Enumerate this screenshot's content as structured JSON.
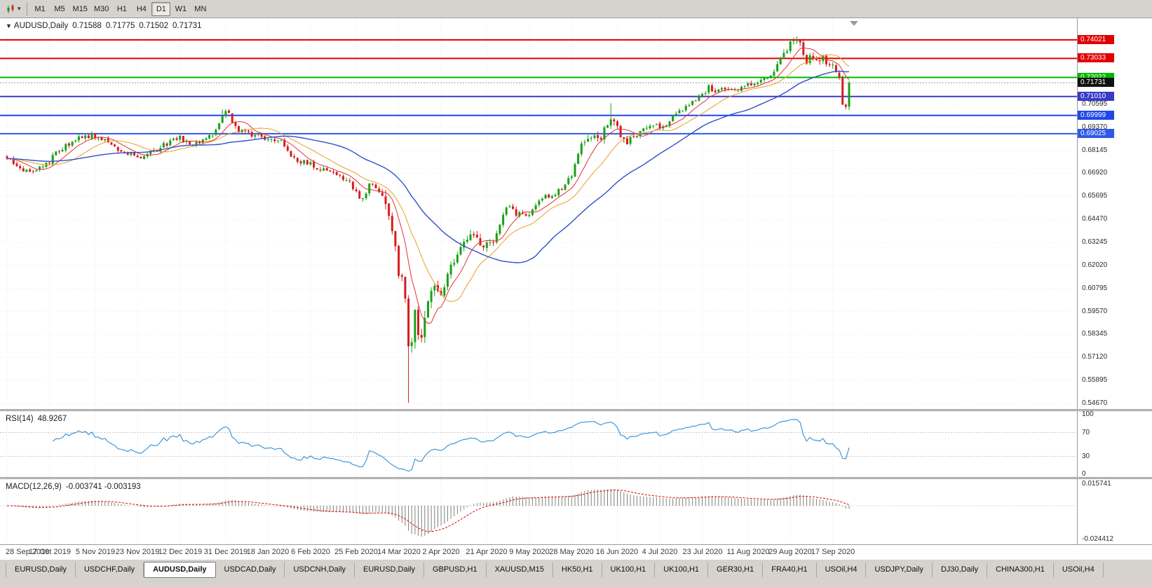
{
  "window": {
    "background": "#d6d3ce"
  },
  "toolbar": {
    "periods": [
      "M1",
      "M5",
      "M15",
      "M30",
      "H1",
      "H4",
      "D1",
      "W1",
      "MN"
    ],
    "active_period": "D1",
    "chart_icon": "candlestick-chart-icon",
    "dropdown_caret": "▾"
  },
  "chart": {
    "header": {
      "collapse": "▼",
      "symbol": "AUDUSD,Daily",
      "open": "0.71588",
      "high": "0.71775",
      "low": "0.71502",
      "close": "0.71731"
    }
  },
  "rsi": {
    "label": "RSI(14)",
    "value": "48.9267",
    "axis_labels": [
      "100",
      "70",
      "30",
      "0"
    ],
    "levels": [
      70,
      30
    ],
    "line_color": "#2e8fd5"
  },
  "macd": {
    "label": "MACD(12,26,9)",
    "value": "-0.003741 -0.003193",
    "axis_max_label": "0.015741",
    "axis_min_label": "-0.024412",
    "axis_max": 0.015741,
    "axis_min": -0.024412,
    "hist_color": "#7f7f7f",
    "signal_color": "#e00000"
  },
  "tabs": [
    "EURUSD,Daily",
    "USDCHF,Daily",
    "AUDUSD,Daily",
    "USDCAD,Daily",
    "USDCNH,Daily",
    "EURUSD,Daily",
    "GBPUSD,H1",
    "XAUUSD,M15",
    "HK50,H1",
    "UK100,H1",
    "UK100,H1",
    "GER30,H1",
    "FRA40,H1",
    "USOil,H4",
    "USDJPY,Daily",
    "DJ30,Daily",
    "CHINA300,H1",
    "USOil,H4"
  ],
  "active_tab_index": 2,
  "chart_data": {
    "type": "candlestick",
    "symbol": "AUDUSD",
    "timeframe": "Daily",
    "ohlc_display": {
      "open": 0.71588,
      "high": 0.71775,
      "low": 0.71502,
      "close": 0.71731
    },
    "y_range": [
      0.54372,
      0.75172
    ],
    "n_candles": 259,
    "seed": 42,
    "base_amp": 0.0016,
    "volatility_zones": [
      {
        "from": 115,
        "to": 132,
        "amp": 0.0042
      },
      {
        "from": 133,
        "to": 150,
        "amp": 0.0028
      },
      {
        "from": 174,
        "to": 190,
        "amp": 0.0026
      },
      {
        "from": 236,
        "to": 258,
        "amp": 0.0024
      }
    ],
    "price_anchors": [
      [
        0,
        0.677
      ],
      [
        3,
        0.6738
      ],
      [
        6,
        0.6708
      ],
      [
        9,
        0.6715
      ],
      [
        13,
        0.6758
      ],
      [
        17,
        0.683
      ],
      [
        21,
        0.6872
      ],
      [
        25,
        0.6892
      ],
      [
        28,
        0.6885
      ],
      [
        31,
        0.6852
      ],
      [
        35,
        0.6805
      ],
      [
        38,
        0.6788
      ],
      [
        41,
        0.6782
      ],
      [
        45,
        0.6808
      ],
      [
        49,
        0.6852
      ],
      [
        53,
        0.6878
      ],
      [
        56,
        0.6846
      ],
      [
        59,
        0.6862
      ],
      [
        63,
        0.6905
      ],
      [
        66,
        0.7005
      ],
      [
        68,
        0.7012
      ],
      [
        70,
        0.6938
      ],
      [
        73,
        0.6902
      ],
      [
        77,
        0.6885
      ],
      [
        80,
        0.6872
      ],
      [
        84,
        0.6855
      ],
      [
        87,
        0.6795
      ],
      [
        90,
        0.6752
      ],
      [
        93,
        0.6745
      ],
      [
        96,
        0.6715
      ],
      [
        99,
        0.6692
      ],
      [
        102,
        0.6678
      ],
      [
        105,
        0.6642
      ],
      [
        107,
        0.6588
      ],
      [
        109,
        0.6548
      ],
      [
        111,
        0.6638
      ],
      [
        113,
        0.6605
      ],
      [
        115,
        0.6578
      ],
      [
        117,
        0.6452
      ],
      [
        119,
        0.6308
      ],
      [
        120,
        0.6188
      ],
      [
        121,
        0.6122
      ],
      [
        122,
        0.5992
      ],
      [
        123,
        0.5772
      ],
      [
        124,
        0.5825
      ],
      [
        125,
        0.5938
      ],
      [
        126,
        0.5868
      ],
      [
        127,
        0.5812
      ],
      [
        128,
        0.5882
      ],
      [
        129,
        0.5972
      ],
      [
        131,
        0.6078
      ],
      [
        133,
        0.6062
      ],
      [
        136,
        0.6192
      ],
      [
        139,
        0.6302
      ],
      [
        142,
        0.6362
      ],
      [
        145,
        0.6332
      ],
      [
        147,
        0.6316
      ],
      [
        150,
        0.6368
      ],
      [
        153,
        0.6512
      ],
      [
        156,
        0.6478
      ],
      [
        159,
        0.6452
      ],
      [
        162,
        0.6532
      ],
      [
        165,
        0.6572
      ],
      [
        168,
        0.6592
      ],
      [
        171,
        0.6622
      ],
      [
        174,
        0.6718
      ],
      [
        176,
        0.6832
      ],
      [
        179,
        0.6895
      ],
      [
        182,
        0.6885
      ],
      [
        185,
        0.7002
      ],
      [
        187,
        0.6932
      ],
      [
        189,
        0.6858
      ],
      [
        191,
        0.6882
      ],
      [
        194,
        0.6918
      ],
      [
        197,
        0.6932
      ],
      [
        200,
        0.6946
      ],
      [
        203,
        0.6972
      ],
      [
        206,
        0.7012
      ],
      [
        209,
        0.7068
      ],
      [
        212,
        0.7102
      ],
      [
        215,
        0.7148
      ],
      [
        218,
        0.7125
      ],
      [
        221,
        0.7152
      ],
      [
        224,
        0.7138
      ],
      [
        227,
        0.7158
      ],
      [
        230,
        0.7178
      ],
      [
        233,
        0.7205
      ],
      [
        236,
        0.7262
      ],
      [
        239,
        0.7352
      ],
      [
        241,
        0.7398
      ],
      [
        243,
        0.7372
      ],
      [
        245,
        0.7282
      ],
      [
        247,
        0.7312
      ],
      [
        249,
        0.7298
      ],
      [
        251,
        0.7288
      ],
      [
        253,
        0.7262
      ],
      [
        255,
        0.7188
      ],
      [
        256,
        0.7068
      ],
      [
        257,
        0.7032
      ],
      [
        258,
        0.71731
      ]
    ],
    "wick_overrides": [
      {
        "i": 123,
        "low": 0.547
      },
      {
        "i": 241,
        "high": 0.7414
      },
      {
        "i": 185,
        "high": 0.7064
      },
      {
        "i": 66,
        "high": 0.7032
      }
    ],
    "x_labels": [
      "28 Sep 2019",
      "17 Oct 2019",
      "5 Nov 2019",
      "23 Nov 2019",
      "12 Dec 2019",
      "31 Dec 2019",
      "18 Jan 2020",
      "6 Feb 2020",
      "25 Feb 2020",
      "14 Mar 2020",
      "2 Apr 2020",
      "21 Apr 2020",
      "9 May 2020",
      "28 May 2020",
      "16 Jun 2020",
      "4 Jul 2020",
      "23 Jul 2020",
      "11 Aug 2020",
      "29 Aug 2020",
      "17 Sep 2020"
    ],
    "x_label_indices": [
      0,
      13,
      27,
      40,
      53,
      67,
      80,
      93,
      107,
      120,
      133,
      147,
      160,
      173,
      187,
      200,
      213,
      227,
      240,
      253
    ],
    "axis_ticks": [
      "0.70595",
      "0.69370",
      "0.68145",
      "0.66920",
      "0.65695",
      "0.64470",
      "0.63245",
      "0.62020",
      "0.60795",
      "0.59570",
      "0.58345",
      "0.57120",
      "0.55895",
      "0.54670"
    ],
    "h_lines": [
      {
        "label": "0.74021",
        "price": 0.74021,
        "color": "#e00000"
      },
      {
        "label": "0.73033",
        "price": 0.73033,
        "color": "#e00000"
      },
      {
        "label": "0.72022",
        "price": 0.72022,
        "color": "#00b800"
      },
      {
        "label": "0.71010",
        "price": 0.7101,
        "color": "#3a3ac8"
      },
      {
        "label": "0.69999",
        "price": 0.69999,
        "color": "#1f48e8"
      },
      {
        "label": "0.69025",
        "price": 0.69025,
        "color": "#2f58e8"
      }
    ],
    "current_price": {
      "label": "0.71731",
      "price": 0.71731,
      "color": "#111111"
    },
    "up_color": "#18a018",
    "down_color": "#d61c1c",
    "grid_color": "#e7e7e7",
    "moving_averages": [
      {
        "period": 8,
        "color": "#e23232",
        "width": 1
      },
      {
        "period": 17,
        "color": "#e8a020",
        "width": 1
      },
      {
        "period": 40,
        "color": "#3050c8",
        "width": 1.4
      }
    ],
    "indicators": [
      {
        "name": "RSI",
        "period": 14
      },
      {
        "name": "MACD",
        "fast": 12,
        "slow": 26,
        "signal": 9
      }
    ]
  }
}
